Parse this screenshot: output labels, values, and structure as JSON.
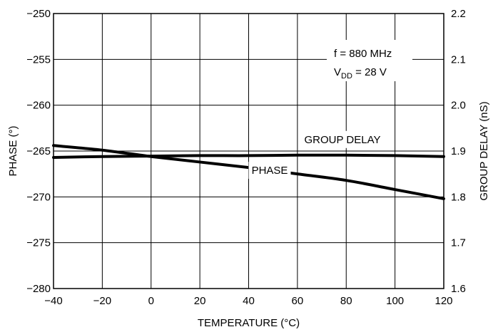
{
  "chart_data": {
    "type": "line",
    "title": "",
    "xlabel": "TEMPERATURE (°C)",
    "ylabel_left": "PHASE (°)",
    "ylabel_right": "GROUP DELAY (nS)",
    "xlim": [
      -40,
      120
    ],
    "ylim_left": [
      -280,
      -250
    ],
    "ylim_right": [
      1.6,
      2.2
    ],
    "x_ticks": [
      -40,
      -20,
      0,
      20,
      40,
      60,
      80,
      100,
      120
    ],
    "y_left_ticks": [
      -280,
      -275,
      -270,
      -265,
      -260,
      -255,
      -250
    ],
    "y_right_ticks": [
      1.6,
      1.7,
      1.8,
      1.9,
      2.0,
      2.1,
      2.2
    ],
    "grid": true,
    "annotation": {
      "line1": "f = 880 MHz",
      "line2_prefix": "V",
      "line2_sub": "DD",
      "line2_suffix": " = 28 V"
    },
    "series": [
      {
        "name": "PHASE",
        "axis": "left",
        "x": [
          -40,
          -20,
          0,
          20,
          40,
          60,
          80,
          100,
          120
        ],
        "values": [
          -264.4,
          -264.9,
          -265.6,
          -266.2,
          -266.8,
          -267.5,
          -268.2,
          -269.2,
          -270.2
        ]
      },
      {
        "name": "GROUP DELAY",
        "axis": "right",
        "x": [
          -40,
          -20,
          0,
          20,
          40,
          60,
          80,
          100,
          120
        ],
        "values": [
          1.886,
          1.888,
          1.889,
          1.89,
          1.89,
          1.891,
          1.891,
          1.89,
          1.888
        ]
      }
    ]
  }
}
